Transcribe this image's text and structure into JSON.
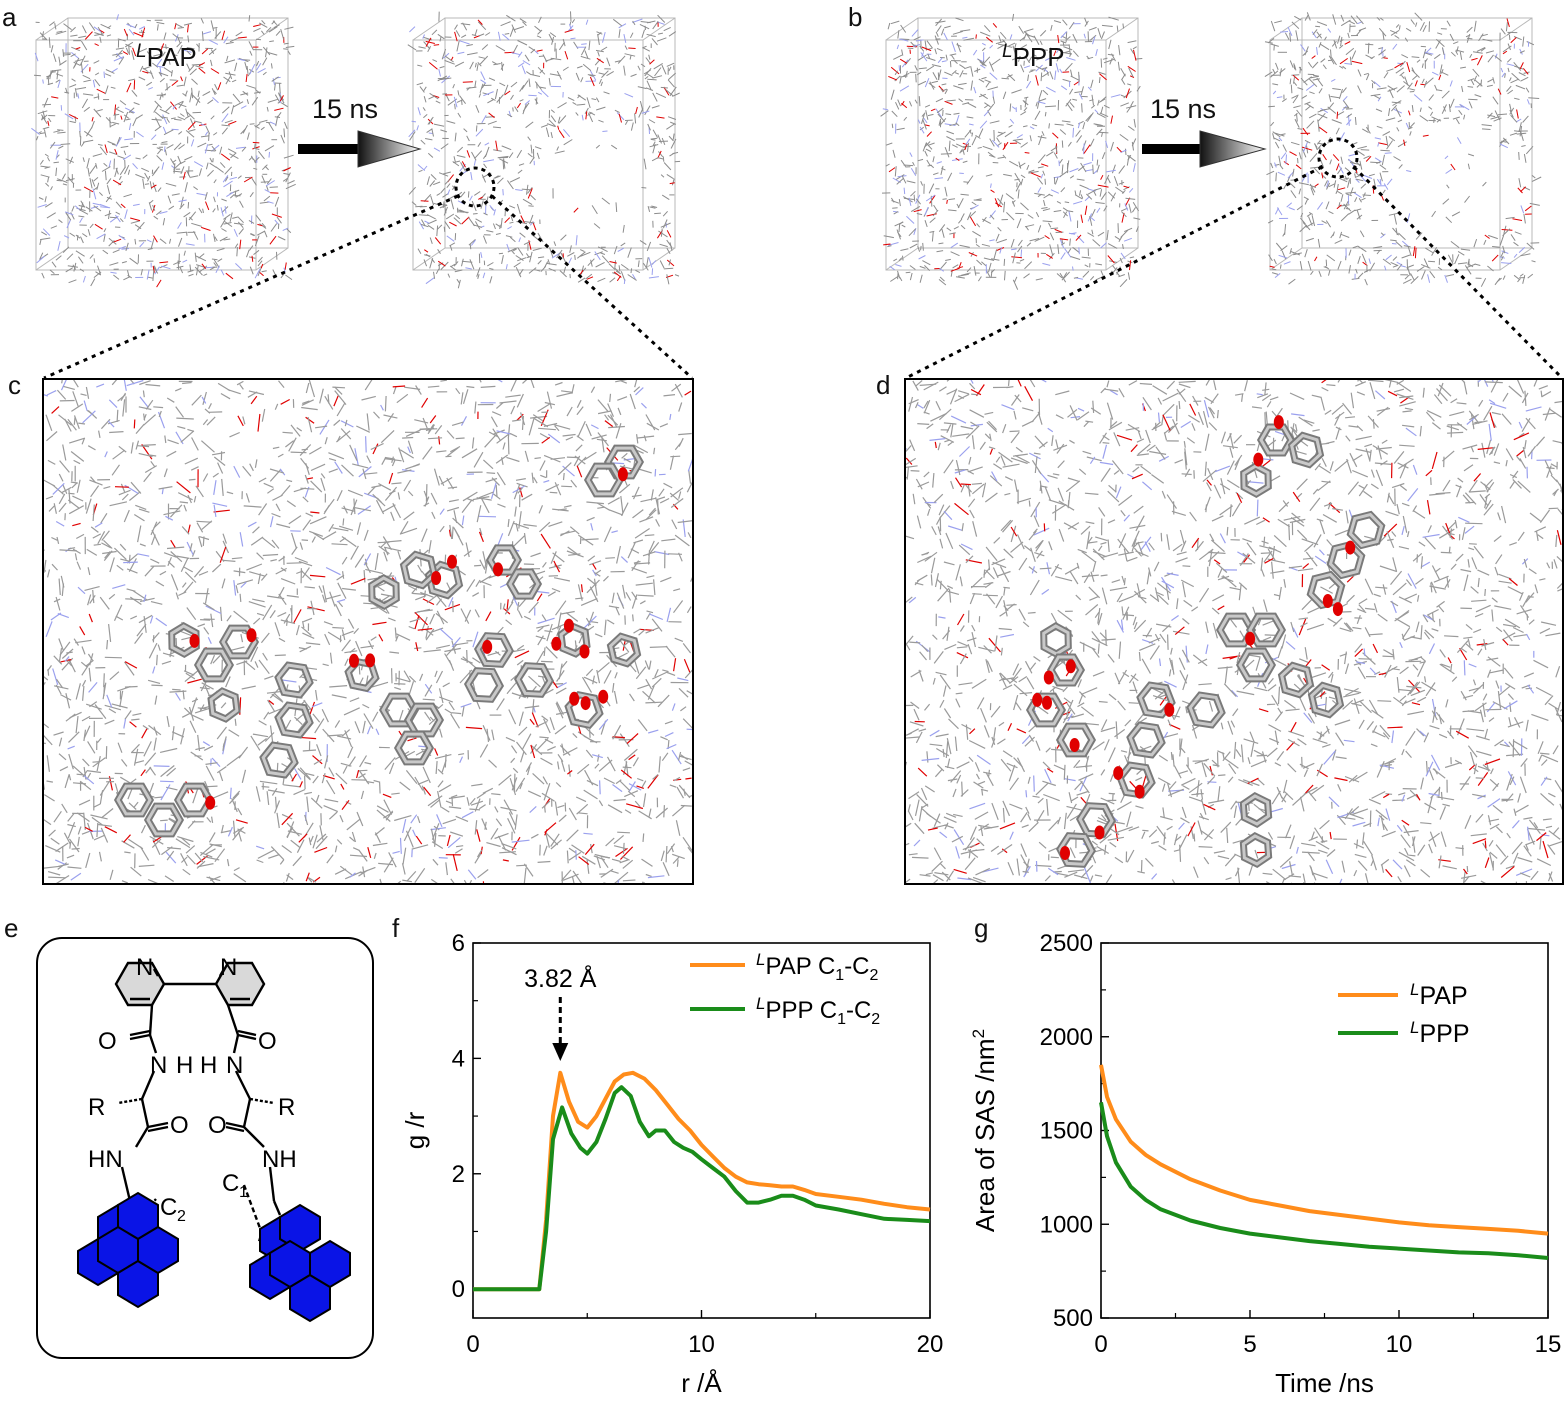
{
  "panels": {
    "a": {
      "letter": "a",
      "label_sup": "L",
      "label_main": "PAP",
      "arrow_text": "15 ns"
    },
    "b": {
      "letter": "b",
      "label_sup": "L",
      "label_main": "PPP",
      "arrow_text": "15 ns"
    },
    "c": {
      "letter": "c"
    },
    "d": {
      "letter": "d"
    },
    "e": {
      "letter": "e",
      "atoms": {
        "n1": "N",
        "n2": "N",
        "o1": "O",
        "o2": "O",
        "nh1": "N",
        "h1": "H",
        "h2": "H",
        "nh2": "N",
        "r1": "R",
        "r2": "R",
        "o3": "O",
        "o4": "O",
        "hn1": "HN",
        "nh3": "NH",
        "c2": "C",
        "c2_sub": "2",
        "c1": "C",
        "c1_sub": "1"
      },
      "colors": {
        "pyrene": "#0a14e6",
        "pyridine": "#d9d9d9"
      }
    },
    "f": {
      "letter": "f",
      "annotation": "3.82 Å"
    },
    "g": {
      "letter": "g"
    }
  },
  "colors": {
    "orange": "#ff8c1a",
    "green": "#1a8c1a",
    "oxygen": "#e00000",
    "nitrogen": "#9aa0ee",
    "carbon": "#8a8a8a"
  },
  "chart_data": [
    {
      "id": "f",
      "type": "line",
      "xlabel": "r /Å",
      "ylabel": "g /r",
      "xlim": [
        0,
        20
      ],
      "ylim": [
        -0.5,
        6
      ],
      "xticks": [
        0,
        10,
        20
      ],
      "yticks": [
        0,
        2,
        4,
        6
      ],
      "legend_position": "top-right",
      "annotation": {
        "text": "3.82 Å",
        "x": 3.82
      },
      "series": [
        {
          "name_sup": "L",
          "name_main": "PAP C",
          "name_sub1": "1",
          "name_mid": "-C",
          "name_sub2": "2",
          "color": "#ff8c1a",
          "x": [
            0,
            2.9,
            3.2,
            3.5,
            3.82,
            4.2,
            4.6,
            5.0,
            5.4,
            5.8,
            6.2,
            6.6,
            7.0,
            7.5,
            8.0,
            8.5,
            9.0,
            9.5,
            10.0,
            10.5,
            11.0,
            11.5,
            12.0,
            12.5,
            13.0,
            13.5,
            14.0,
            14.5,
            15.0,
            16.0,
            17.0,
            18.0,
            19.0,
            20.0
          ],
          "y": [
            0,
            0,
            1.2,
            3.0,
            3.75,
            3.25,
            2.9,
            2.8,
            3.0,
            3.3,
            3.6,
            3.72,
            3.75,
            3.65,
            3.45,
            3.2,
            2.95,
            2.75,
            2.5,
            2.3,
            2.1,
            1.95,
            1.85,
            1.82,
            1.8,
            1.78,
            1.78,
            1.72,
            1.65,
            1.6,
            1.55,
            1.48,
            1.42,
            1.38
          ]
        },
        {
          "name_sup": "L",
          "name_main": "PPP C",
          "name_sub1": "1",
          "name_mid": "-C",
          "name_sub2": "2",
          "color": "#1a8c1a",
          "x": [
            0,
            2.9,
            3.2,
            3.5,
            3.9,
            4.3,
            4.7,
            5.0,
            5.4,
            5.8,
            6.2,
            6.5,
            6.9,
            7.3,
            7.7,
            8.0,
            8.4,
            8.8,
            9.2,
            9.6,
            10.0,
            10.5,
            11.0,
            11.5,
            12.0,
            12.5,
            13.0,
            13.5,
            14.0,
            14.5,
            15.0,
            16.0,
            17.0,
            18.0,
            19.0,
            20.0
          ],
          "y": [
            0,
            0,
            1.0,
            2.6,
            3.15,
            2.7,
            2.45,
            2.35,
            2.55,
            2.95,
            3.4,
            3.5,
            3.35,
            2.9,
            2.65,
            2.75,
            2.75,
            2.55,
            2.45,
            2.38,
            2.25,
            2.1,
            1.95,
            1.7,
            1.5,
            1.5,
            1.55,
            1.62,
            1.62,
            1.55,
            1.45,
            1.38,
            1.3,
            1.22,
            1.2,
            1.18
          ]
        }
      ]
    },
    {
      "id": "g",
      "type": "line",
      "xlabel": "Time /ns",
      "ylabel": "Area of SAS /nm",
      "ylabel_sup": "2",
      "xlim": [
        0,
        15
      ],
      "ylim": [
        500,
        2500
      ],
      "xticks": [
        0,
        5,
        10,
        15
      ],
      "yticks": [
        500,
        1000,
        1500,
        2000,
        2500
      ],
      "legend_position": "top-right",
      "series": [
        {
          "name_sup": "L",
          "name_main": "PAP",
          "color": "#ff8c1a",
          "x": [
            0,
            0.2,
            0.5,
            1,
            1.5,
            2,
            3,
            4,
            5,
            6,
            7,
            8,
            9,
            10,
            11,
            12,
            13,
            14,
            15
          ],
          "y": [
            1850,
            1680,
            1560,
            1440,
            1370,
            1320,
            1240,
            1180,
            1130,
            1100,
            1070,
            1050,
            1030,
            1010,
            995,
            985,
            975,
            965,
            950
          ]
        },
        {
          "name_sup": "L",
          "name_main": "PPP",
          "color": "#1a8c1a",
          "x": [
            0,
            0.2,
            0.5,
            1,
            1.5,
            2,
            3,
            4,
            5,
            6,
            7,
            8,
            9,
            10,
            11,
            12,
            13,
            14,
            15
          ],
          "y": [
            1650,
            1470,
            1330,
            1200,
            1130,
            1080,
            1020,
            980,
            950,
            930,
            910,
            895,
            880,
            870,
            860,
            850,
            845,
            835,
            820
          ]
        }
      ]
    }
  ]
}
